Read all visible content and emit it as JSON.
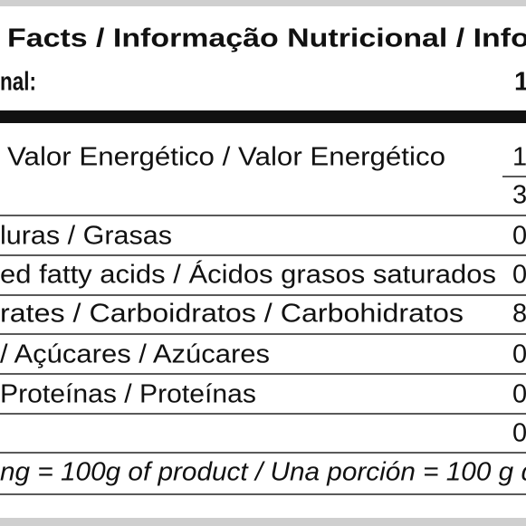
{
  "header": {
    "title": "Facts / Informação Nutricional / Infor",
    "subtitle": "nal:",
    "value": "1"
  },
  "rows": [
    {
      "label": "Valor Energético / Valor Energético",
      "value": "1"
    },
    {
      "value": "3"
    },
    {
      "label": "luras / Grasas",
      "value": "0"
    },
    {
      "label": "ed fatty acids / Ácidos grasos saturados",
      "value": "0"
    },
    {
      "label": "rates / Carboidratos / Carbohidratos",
      "value": "8"
    },
    {
      "label": "/ Açúcares / Azúcares",
      "value": "0"
    },
    {
      "label": "Proteínas / Proteínas",
      "value": "0"
    },
    {
      "value": "0"
    }
  ],
  "footer": "ng = 100g of product / Una porción = 100 g d"
}
